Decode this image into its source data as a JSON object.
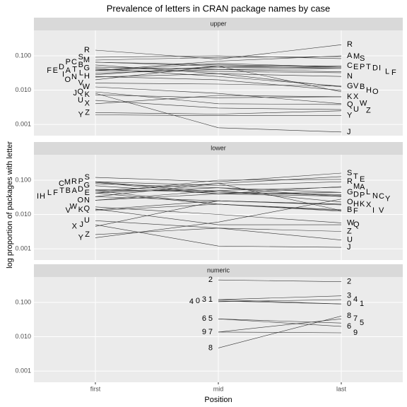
{
  "chart_data": {
    "type": "line",
    "title": "Prevalence of letters in CRAN package names by case",
    "x_label": "Position",
    "y_label": "log proportion of packages with letter",
    "categories": [
      "first",
      "mid",
      "last"
    ],
    "log_y": true,
    "ylim": [
      0.00047,
      0.55
    ],
    "yticks": [
      0.001,
      {
        "value": 0.01,
        "label": "0.010"
      },
      {
        "value": 0.1,
        "label": "0.100"
      }
    ],
    "color": "#333333",
    "facets": [
      {
        "label": "upper",
        "series": [
          {
            "name": "A",
            "values": [
              0.037,
              0.07,
              0.1
            ]
          },
          {
            "name": "B",
            "values": [
              0.054,
              0.03,
              0.0124
            ]
          },
          {
            "name": "C",
            "values": [
              0.065,
              0.05,
              0.051
            ]
          },
          {
            "name": "D",
            "values": [
              0.047,
              0.04,
              0.043
            ]
          },
          {
            "name": "E",
            "values": [
              0.037,
              0.06,
              0.047
            ]
          },
          {
            "name": "F",
            "values": [
              0.037,
              0.035,
              0.032
            ]
          },
          {
            "name": "G",
            "values": [
              0.043,
              0.025,
              0.013
            ]
          },
          {
            "name": "H",
            "values": [
              0.025,
              0.02,
              0.0098
            ]
          },
          {
            "name": "I",
            "values": [
              0.028,
              0.05,
              0.043
            ]
          },
          {
            "name": "J",
            "values": [
              0.0081,
              0.0008,
              0.0006
            ]
          },
          {
            "name": "K",
            "values": [
              0.0073,
              0.006,
              0.0064
            ]
          },
          {
            "name": "L",
            "values": [
              0.031,
              0.04,
              0.034
            ]
          },
          {
            "name": "M",
            "values": [
              0.075,
              0.09,
              0.095
            ]
          },
          {
            "name": "N",
            "values": [
              0.024,
              0.03,
              0.025
            ]
          },
          {
            "name": "O",
            "values": [
              0.02,
              0.05,
              0.0089
            ]
          },
          {
            "name": "P",
            "values": [
              0.065,
              0.055,
              0.047
            ]
          },
          {
            "name": "Q",
            "values": [
              0.0089,
              0.004,
              0.0038
            ]
          },
          {
            "name": "R",
            "values": [
              0.146,
              0.08,
              0.21
            ]
          },
          {
            "name": "S",
            "values": [
              0.091,
              0.1,
              0.083
            ]
          },
          {
            "name": "T",
            "values": [
              0.039,
              0.045,
              0.047
            ]
          },
          {
            "name": "U",
            "values": [
              0.005,
              0.003,
              0.0027
            ]
          },
          {
            "name": "V",
            "values": [
              0.016,
              0.015,
              0.013
            ]
          },
          {
            "name": "W",
            "values": [
              0.0124,
              0.008,
              0.004
            ]
          },
          {
            "name": "X",
            "values": [
              0.004,
              0.007,
              0.0064
            ]
          },
          {
            "name": "Y",
            "values": [
              0.0019,
              0.0018,
              0.0018
            ]
          },
          {
            "name": "Z",
            "values": [
              0.0022,
              0.002,
              0.0025
            ]
          }
        ]
      },
      {
        "label": "lower",
        "series": [
          {
            "name": "A",
            "values": [
              0.049,
              0.05,
              0.062
            ]
          },
          {
            "name": "B",
            "values": [
              0.049,
              0.02,
              0.0137
            ]
          },
          {
            "name": "C",
            "values": [
              0.079,
              0.06,
              0.033
            ]
          },
          {
            "name": "D",
            "values": [
              0.053,
              0.045,
              0.038
            ]
          },
          {
            "name": "E",
            "values": [
              0.042,
              0.1,
              0.105
            ]
          },
          {
            "name": "F",
            "values": [
              0.042,
              0.02,
              0.0124
            ]
          },
          {
            "name": "G",
            "values": [
              0.069,
              0.04,
              0.044
            ]
          },
          {
            "name": "H",
            "values": [
              0.033,
              0.025,
              0.02
            ]
          },
          {
            "name": "I",
            "values": [
              0.033,
              0.08,
              0.013
            ]
          },
          {
            "name": "J",
            "values": [
              0.005,
              0.0012,
              0.0011
            ]
          },
          {
            "name": "K",
            "values": [
              0.0137,
              0.025,
              0.02
            ]
          },
          {
            "name": "L",
            "values": [
              0.042,
              0.06,
              0.044
            ]
          },
          {
            "name": "M",
            "values": [
              0.086,
              0.04,
              0.065
            ]
          },
          {
            "name": "N",
            "values": [
              0.026,
              0.04,
              0.034
            ]
          },
          {
            "name": "O",
            "values": [
              0.026,
              0.05,
              0.023
            ]
          },
          {
            "name": "P",
            "values": [
              0.09,
              0.045,
              0.036
            ]
          },
          {
            "name": "Q",
            "values": [
              0.0144,
              0.005,
              0.005
            ]
          },
          {
            "name": "R",
            "values": [
              0.09,
              0.07,
              0.09
            ]
          },
          {
            "name": "S",
            "values": [
              0.12,
              0.09,
              0.16
            ]
          },
          {
            "name": "T",
            "values": [
              0.049,
              0.08,
              0.127
            ]
          },
          {
            "name": "U",
            "values": [
              0.0066,
              0.004,
              0.0018
            ]
          },
          {
            "name": "V",
            "values": [
              0.013,
              0.02,
              0.013
            ]
          },
          {
            "name": "W",
            "values": [
              0.0166,
              0.01,
              0.0057
            ]
          },
          {
            "name": "X",
            "values": [
              0.0045,
              0.025,
              0.019
            ]
          },
          {
            "name": "Y",
            "values": [
              0.0021,
              0.006,
              0.028
            ]
          },
          {
            "name": "Z",
            "values": [
              0.0026,
              0.004,
              0.0032
            ]
          }
        ]
      },
      {
        "label": "numeric",
        "series": [
          {
            "name": "0",
            "values": [
              null,
              0.11,
              0.09
            ]
          },
          {
            "name": "1",
            "values": [
              null,
              0.12,
              0.09
            ]
          },
          {
            "name": "2",
            "values": [
              null,
              0.45,
              0.4
            ]
          },
          {
            "name": "3",
            "values": [
              null,
              0.12,
              0.155
            ]
          },
          {
            "name": "4",
            "values": [
              null,
              0.105,
              0.12
            ]
          },
          {
            "name": "5",
            "values": [
              null,
              0.033,
              0.025
            ]
          },
          {
            "name": "6",
            "values": [
              null,
              0.033,
              0.02
            ]
          },
          {
            "name": "7",
            "values": [
              null,
              0.0137,
              0.033
            ]
          },
          {
            "name": "8",
            "values": [
              null,
              0.0047,
              0.04
            ]
          },
          {
            "name": "9",
            "values": [
              null,
              0.0137,
              0.013
            ]
          }
        ]
      }
    ]
  }
}
